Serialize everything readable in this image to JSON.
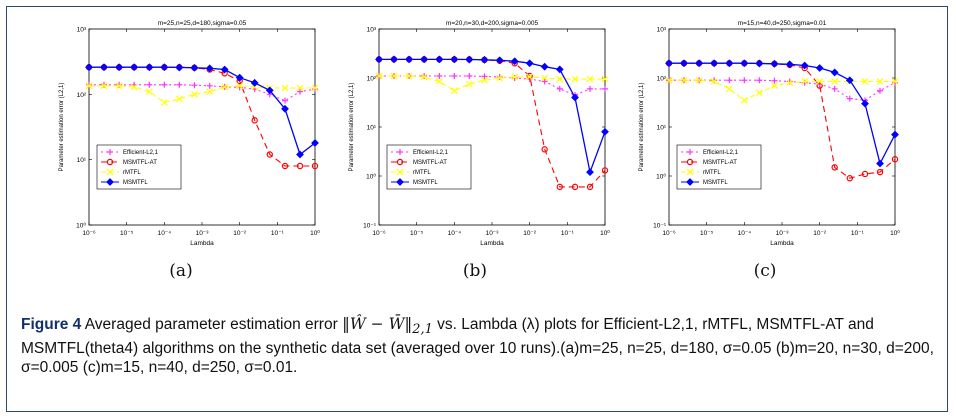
{
  "figure": {
    "subfigure_labels": [
      "(a)",
      "(b)",
      "(c)"
    ],
    "caption": {
      "figure_label": "Figure 4",
      "text_before_math": "Averaged parameter estimation error",
      "math": "‖Ŵ − W̄‖",
      "math_subscript": "2,1",
      "text_after_math": "vs. Lambda (λ) plots for Efficient-L2,1, rMTFL, MSMTFL-AT and MSMTFL(theta4) algorithms on the synthetic data set (averaged over 10 runs).(a)m=25, n=25, d=180, σ=0.05 (b)m=20, n=30, d=200, σ=0.005 (c)m=15, n=40, d=250, σ=0.01."
    }
  },
  "styles": {
    "Efficient-L2,1": {
      "color": "#ff33ff",
      "dash": "2,3",
      "marker": "plus"
    },
    "MSMTFL-AT": {
      "color": "#ff0000",
      "dash": "6,4",
      "marker": "circle"
    },
    "rMTFL": {
      "color": "#ffff00",
      "dash": "5,3",
      "marker": "x"
    },
    "MSMTFL": {
      "color": "#0000ff",
      "dash": "",
      "marker": "diamond"
    }
  },
  "chart_data": [
    {
      "type": "line",
      "title": "m=25,n=25,d=180,sigma=0.05",
      "xlabel": "Lambda",
      "ylabel": "Parameter estimation error (L2,1)",
      "xscale": "log",
      "yscale": "log",
      "xlim": [
        1e-06,
        1
      ],
      "ylim": [
        1,
        1000
      ],
      "xticks": [
        "10⁻⁶",
        "10⁻⁵",
        "10⁻⁴",
        "10⁻³",
        "10⁻²",
        "10⁻¹",
        "10⁰"
      ],
      "yticks": [
        "10⁰",
        "10¹",
        "10²",
        "10³"
      ],
      "legend_position": "center-left",
      "series": [
        {
          "name": "Efficient-L2,1",
          "x": [
            1e-06,
            2.5e-06,
            6.3e-06,
            1.58e-05,
            4e-05,
            0.0001,
            0.00025,
            0.00063,
            0.0016,
            0.004,
            0.01,
            0.025,
            0.063,
            0.16,
            0.4,
            1
          ],
          "y": [
            140,
            140,
            140,
            140,
            140,
            140,
            140,
            138,
            135,
            130,
            128,
            120,
            100,
            80,
            110,
            120
          ]
        },
        {
          "name": "MSMTFL-AT",
          "x": [
            1e-06,
            2.5e-06,
            6.3e-06,
            1.58e-05,
            4e-05,
            0.0001,
            0.00025,
            0.00063,
            0.0016,
            0.004,
            0.01,
            0.025,
            0.063,
            0.16,
            0.4,
            1
          ],
          "y": [
            260,
            260,
            260,
            260,
            260,
            260,
            260,
            255,
            240,
            210,
            160,
            40,
            12,
            8,
            8,
            8
          ]
        },
        {
          "name": "rMTFL",
          "x": [
            1e-06,
            2.5e-06,
            6.3e-06,
            1.58e-05,
            4e-05,
            0.0001,
            0.00025,
            0.00063,
            0.0016,
            0.004,
            0.01,
            0.025,
            0.063,
            0.16,
            0.4,
            1
          ],
          "y": [
            135,
            135,
            135,
            130,
            110,
            75,
            85,
            100,
            110,
            130,
            135,
            130,
            125,
            125,
            125,
            125
          ]
        },
        {
          "name": "MSMTFL",
          "x": [
            1e-06,
            2.5e-06,
            6.3e-06,
            1.58e-05,
            4e-05,
            0.0001,
            0.00025,
            0.00063,
            0.0016,
            0.004,
            0.01,
            0.025,
            0.063,
            0.16,
            0.4,
            1
          ],
          "y": [
            260,
            260,
            260,
            260,
            260,
            260,
            258,
            255,
            250,
            240,
            180,
            150,
            115,
            60,
            12,
            18
          ]
        }
      ]
    },
    {
      "type": "line",
      "title": "m=20,n=30,d=200,sigma=0.005",
      "xlabel": "Lambda",
      "ylabel": "Parameter estimation error (L2,1)",
      "xscale": "log",
      "yscale": "log",
      "xlim": [
        1e-06,
        1
      ],
      "ylim": [
        0.1,
        1000
      ],
      "xticks": [
        "10⁻⁶",
        "10⁻⁵",
        "10⁻⁴",
        "10⁻³",
        "10⁻²",
        "10⁻¹",
        "10⁰"
      ],
      "yticks": [
        "10⁻¹",
        "10⁰",
        "10¹",
        "10²",
        "10³"
      ],
      "legend_position": "center-left",
      "series": [
        {
          "name": "Efficient-L2,1",
          "x": [
            1e-06,
            2.5e-06,
            6.3e-06,
            1.58e-05,
            4e-05,
            0.0001,
            0.00025,
            0.00063,
            0.0016,
            0.004,
            0.01,
            0.025,
            0.063,
            0.16,
            0.4,
            1
          ],
          "y": [
            110,
            110,
            110,
            110,
            110,
            110,
            110,
            108,
            105,
            100,
            95,
            85,
            60,
            45,
            60,
            60
          ]
        },
        {
          "name": "MSMTFL-AT",
          "x": [
            1e-06,
            2.5e-06,
            6.3e-06,
            1.58e-05,
            4e-05,
            0.0001,
            0.00025,
            0.00063,
            0.0016,
            0.004,
            0.01,
            0.025,
            0.063,
            0.16,
            0.4,
            1
          ],
          "y": [
            240,
            240,
            240,
            240,
            240,
            240,
            240,
            235,
            225,
            200,
            110,
            3.5,
            0.6,
            0.6,
            0.6,
            1.3
          ]
        },
        {
          "name": "rMTFL",
          "x": [
            1e-06,
            2.5e-06,
            6.3e-06,
            1.58e-05,
            4e-05,
            0.0001,
            0.00025,
            0.00063,
            0.0016,
            0.004,
            0.01,
            0.025,
            0.063,
            0.16,
            0.4,
            1
          ],
          "y": [
            110,
            110,
            110,
            105,
            85,
            55,
            75,
            90,
            100,
            105,
            105,
            100,
            95,
            95,
            95,
            95
          ]
        },
        {
          "name": "MSMTFL",
          "x": [
            1e-06,
            2.5e-06,
            6.3e-06,
            1.58e-05,
            4e-05,
            0.0001,
            0.00025,
            0.00063,
            0.0016,
            0.004,
            0.01,
            0.025,
            0.063,
            0.16,
            0.4,
            1
          ],
          "y": [
            240,
            240,
            240,
            240,
            240,
            240,
            238,
            235,
            230,
            220,
            200,
            170,
            150,
            40,
            1.2,
            8
          ]
        }
      ]
    },
    {
      "type": "line",
      "title": "m=15,n=40,d=250,sigma=0.01",
      "xlabel": "Lambda",
      "ylabel": "Parameter estimation error (L2,1)",
      "xscale": "log",
      "yscale": "log",
      "xlim": [
        1e-06,
        1
      ],
      "ylim": [
        0.1,
        1000
      ],
      "xticks": [
        "10⁻⁶",
        "10⁻⁵",
        "10⁻⁴",
        "10⁻³",
        "10⁻²",
        "10⁻¹",
        "10⁰"
      ],
      "yticks": [
        "10⁻¹",
        "10⁰",
        "10¹",
        "10²",
        "10³"
      ],
      "legend_position": "center-left",
      "series": [
        {
          "name": "Efficient-L2,1",
          "x": [
            1e-06,
            2.5e-06,
            6.3e-06,
            1.58e-05,
            4e-05,
            0.0001,
            0.00025,
            0.00063,
            0.0016,
            0.004,
            0.01,
            0.025,
            0.063,
            0.16,
            0.4,
            1
          ],
          "y": [
            90,
            90,
            90,
            90,
            90,
            90,
            90,
            88,
            85,
            80,
            75,
            60,
            38,
            35,
            55,
            80
          ]
        },
        {
          "name": "MSMTFL-AT",
          "x": [
            1e-06,
            2.5e-06,
            6.3e-06,
            1.58e-05,
            4e-05,
            0.0001,
            0.00025,
            0.00063,
            0.0016,
            0.004,
            0.01,
            0.025,
            0.063,
            0.16,
            0.4,
            1
          ],
          "y": [
            200,
            200,
            200,
            200,
            200,
            200,
            200,
            195,
            185,
            160,
            70,
            1.5,
            0.9,
            1.1,
            1.2,
            2.2
          ]
        },
        {
          "name": "rMTFL",
          "x": [
            1e-06,
            2.5e-06,
            6.3e-06,
            1.58e-05,
            4e-05,
            0.0001,
            0.00025,
            0.00063,
            0.0016,
            0.004,
            0.01,
            0.025,
            0.063,
            0.16,
            0.4,
            1
          ],
          "y": [
            90,
            90,
            90,
            85,
            60,
            35,
            50,
            70,
            80,
            85,
            85,
            85,
            85,
            85,
            85,
            85
          ]
        },
        {
          "name": "MSMTFL",
          "x": [
            1e-06,
            2.5e-06,
            6.3e-06,
            1.58e-05,
            4e-05,
            0.0001,
            0.00025,
            0.00063,
            0.0016,
            0.004,
            0.01,
            0.025,
            0.063,
            0.16,
            0.4,
            1
          ],
          "y": [
            200,
            200,
            200,
            200,
            200,
            200,
            198,
            195,
            190,
            180,
            160,
            130,
            90,
            30,
            1.8,
            7
          ]
        }
      ]
    }
  ]
}
